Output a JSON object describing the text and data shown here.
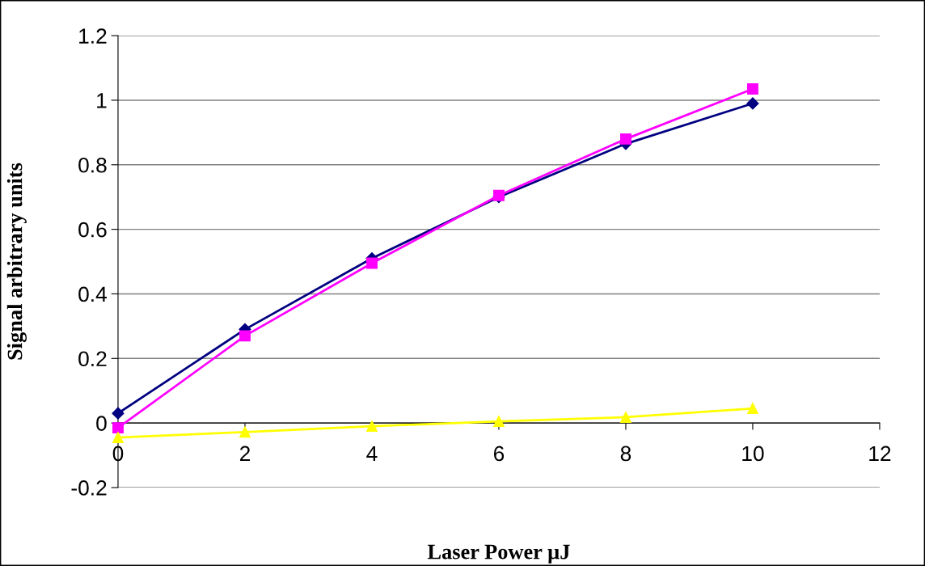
{
  "chart_data": {
    "type": "line",
    "xlabel": "Laser Power µJ",
    "ylabel": "Signal arbitrary units",
    "x": [
      0,
      2,
      4,
      6,
      8,
      10
    ],
    "series": [
      {
        "color": "#000080",
        "marker": "diamond",
        "values": [
          0.03,
          0.29,
          0.51,
          0.7,
          0.865,
          0.99
        ]
      },
      {
        "color": "#ff00ff",
        "marker": "square",
        "values": [
          -0.015,
          0.27,
          0.495,
          0.705,
          0.88,
          1.035
        ]
      },
      {
        "color": "#ffff00",
        "marker": "triangle",
        "values": [
          -0.045,
          -0.028,
          -0.01,
          0.005,
          0.018,
          0.045
        ]
      }
    ],
    "xlim": [
      0,
      12
    ],
    "xticks": [
      0,
      2,
      4,
      6,
      8,
      10,
      12
    ],
    "ylim": [
      -0.2,
      1.2
    ],
    "yticks": [
      -0.2,
      0,
      0.2,
      0.4,
      0.6,
      0.8,
      1,
      1.2
    ],
    "grid": "y"
  }
}
